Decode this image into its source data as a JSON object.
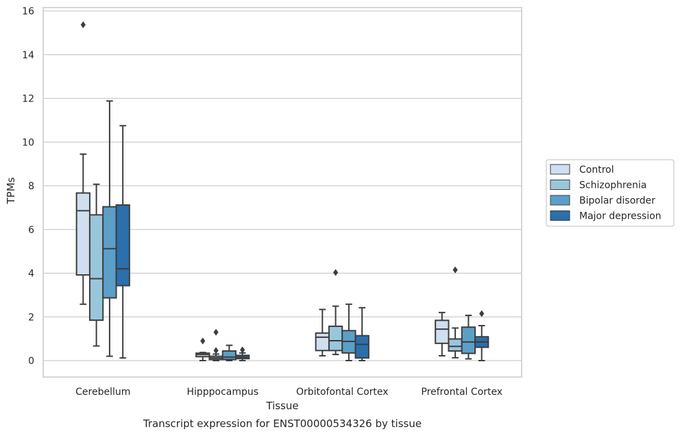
{
  "chart_data": {
    "type": "box",
    "title": "",
    "caption": "Transcript expression for ENST00000534326 by tissue",
    "xlabel": "Tissue",
    "ylabel": "TPMs",
    "ylim": [
      -0.75,
      16.15
    ],
    "yticks": [
      0,
      2,
      4,
      6,
      8,
      10,
      12,
      14,
      16
    ],
    "grid": "horizontal",
    "legend_position": "right",
    "categories": [
      "Cerebellum",
      "Hipppocampus",
      "Orbitofontal Cortex",
      "Prefrontal Cortex"
    ],
    "series": [
      {
        "name": "Control",
        "color": "#cfdff0",
        "boxes": [
          {
            "whisker_low": 2.58,
            "q1": 3.92,
            "median": 6.86,
            "q3": 7.67,
            "whisker_high": 9.45,
            "outliers": [
              15.37
            ]
          },
          {
            "whisker_low": 0.0,
            "q1": 0.18,
            "median": 0.28,
            "q3": 0.34,
            "whisker_high": 0.37,
            "outliers": [
              0.9
            ]
          },
          {
            "whisker_low": 0.22,
            "q1": 0.46,
            "median": 1.07,
            "q3": 1.26,
            "whisker_high": 2.34,
            "outliers": []
          },
          {
            "whisker_low": 0.22,
            "q1": 0.79,
            "median": 1.44,
            "q3": 1.84,
            "whisker_high": 2.2,
            "outliers": []
          }
        ]
      },
      {
        "name": "Schizophrenia",
        "color": "#9ac6dc",
        "boxes": [
          {
            "whisker_low": 0.67,
            "q1": 1.85,
            "median": 3.75,
            "q3": 6.67,
            "whisker_high": 8.07,
            "outliers": []
          },
          {
            "whisker_low": 0.0,
            "q1": 0.05,
            "median": 0.12,
            "q3": 0.2,
            "whisker_high": 0.3,
            "outliers": [
              0.46,
              1.3
            ]
          },
          {
            "whisker_low": 0.28,
            "q1": 0.46,
            "median": 0.91,
            "q3": 1.57,
            "whisker_high": 2.49,
            "outliers": [
              4.03
            ]
          },
          {
            "whisker_low": 0.13,
            "q1": 0.44,
            "median": 0.65,
            "q3": 0.99,
            "whisker_high": 1.49,
            "outliers": [
              4.15
            ]
          }
        ]
      },
      {
        "name": "Bipolar disorder",
        "color": "#5b9fc8",
        "boxes": [
          {
            "whisker_low": 0.2,
            "q1": 2.87,
            "median": 5.12,
            "q3": 7.04,
            "whisker_high": 11.88,
            "outliers": []
          },
          {
            "whisker_low": 0.0,
            "q1": 0.05,
            "median": 0.16,
            "q3": 0.44,
            "whisker_high": 0.7,
            "outliers": []
          },
          {
            "whisker_low": 0.0,
            "q1": 0.35,
            "median": 0.88,
            "q3": 1.37,
            "whisker_high": 2.58,
            "outliers": []
          },
          {
            "whisker_low": 0.08,
            "q1": 0.33,
            "median": 0.85,
            "q3": 1.53,
            "whisker_high": 2.07,
            "outliers": []
          }
        ]
      },
      {
        "name": "Major depression",
        "color": "#2b6fac",
        "boxes": [
          {
            "whisker_low": 0.12,
            "q1": 3.43,
            "median": 4.2,
            "q3": 7.12,
            "whisker_high": 10.75,
            "outliers": []
          },
          {
            "whisker_low": 0.0,
            "q1": 0.09,
            "median": 0.16,
            "q3": 0.24,
            "whisker_high": 0.35,
            "outliers": [
              0.49
            ]
          },
          {
            "whisker_low": 0.0,
            "q1": 0.12,
            "median": 0.74,
            "q3": 1.14,
            "whisker_high": 2.42,
            "outliers": []
          },
          {
            "whisker_low": 0.0,
            "q1": 0.61,
            "median": 0.85,
            "q3": 1.09,
            "whisker_high": 1.6,
            "outliers": [
              2.15
            ]
          }
        ]
      }
    ]
  }
}
